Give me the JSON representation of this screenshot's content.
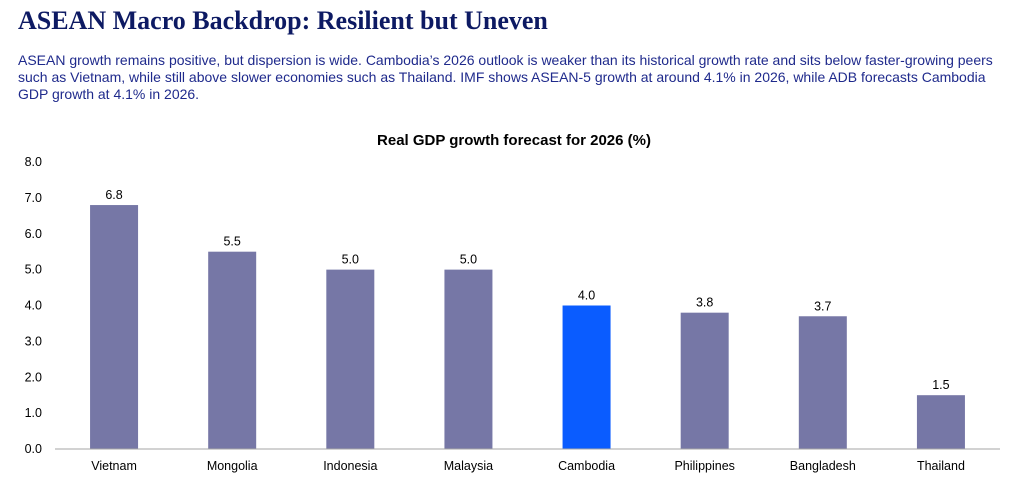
{
  "slide": {
    "title": "ASEAN Macro Backdrop: Resilient but Uneven",
    "body": "ASEAN growth remains positive, but dispersion is wide. Cambodia’s 2026 outlook is weaker than its historical growth rate and sits below faster-growing peers such as Vietnam, while still above slower economies such as Thailand. IMF shows ASEAN-5 growth at around 4.1% in 2026, while ADB forecasts Cambodia GDP growth at 4.1% in 2026."
  },
  "colors": {
    "bar": "#7677a6",
    "highlight": "#0a5cff",
    "axis": "#a6a6a6",
    "title": "#0d1a63",
    "body": "#1f2a8c"
  },
  "chart_data": {
    "type": "bar",
    "title": "Real GDP growth forecast for 2026 (%)",
    "categories": [
      "Vietnam",
      "Mongolia",
      "Indonesia",
      "Malaysia",
      "Cambodia",
      "Philippines",
      "Bangladesh",
      "Thailand"
    ],
    "values": [
      6.8,
      5.5,
      5.0,
      5.0,
      4.0,
      3.8,
      3.7,
      1.5
    ],
    "data_labels": [
      "6.8",
      "5.5",
      "5.0",
      "5.0",
      "4.0",
      "3.8",
      "3.7",
      "1.5"
    ],
    "highlight_category": "Cambodia",
    "ylim": [
      0,
      8
    ],
    "yticks": [
      "0.0",
      "1.0",
      "2.0",
      "3.0",
      "4.0",
      "5.0",
      "6.0",
      "7.0",
      "8.0"
    ],
    "xlabel": "",
    "ylabel": "",
    "grid": false,
    "legend": "none"
  }
}
